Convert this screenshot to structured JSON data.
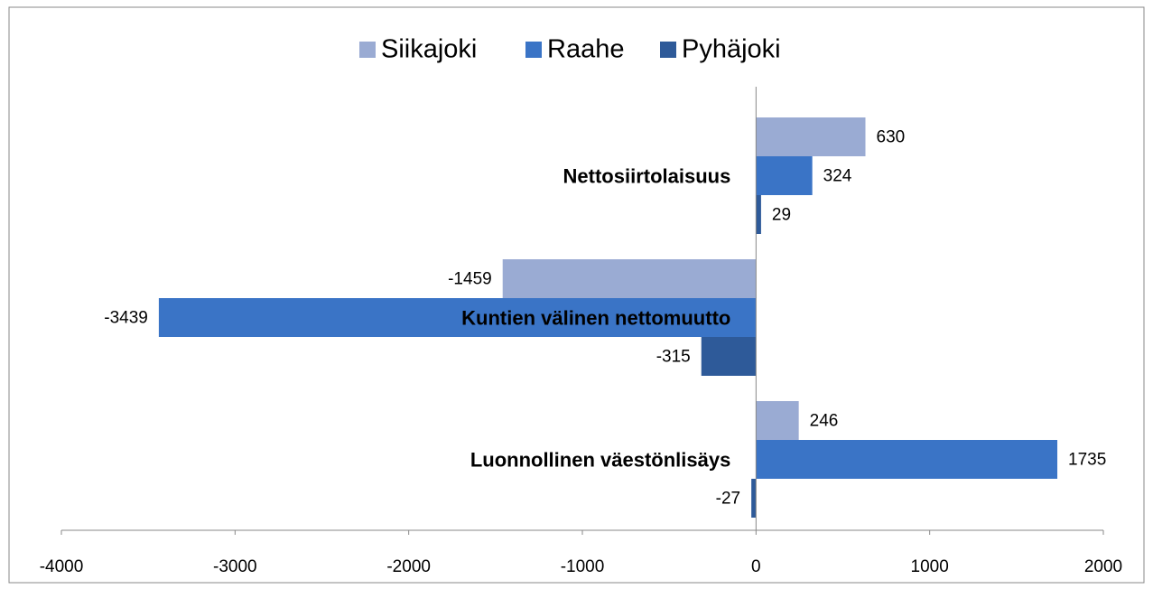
{
  "chart_data": {
    "type": "hbar",
    "categories": [
      "Nettosiirtolaisuus",
      "Kuntien välinen nettomuutto",
      "Luonnollinen väestönlisäys"
    ],
    "series": [
      {
        "name": "Siikajoki",
        "color": "#9aabd3",
        "values": [
          630,
          -1459,
          246
        ]
      },
      {
        "name": "Raahe",
        "color": "#3a74c6",
        "values": [
          324,
          -3439,
          1735
        ]
      },
      {
        "name": "Pyhäjoki",
        "color": "#2e5a99",
        "values": [
          29,
          -315,
          -27
        ]
      }
    ],
    "xlim": [
      -4000,
      2000
    ],
    "xticks": [
      -4000,
      -3000,
      -2000,
      -1000,
      0,
      1000,
      2000
    ],
    "legend": "top",
    "grid": false
  }
}
